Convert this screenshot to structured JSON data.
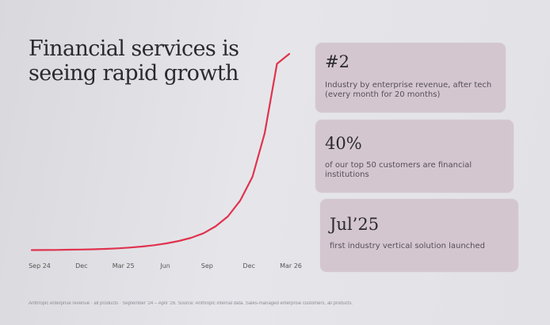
{
  "title": "Financial services is seeing rapid growth",
  "chart_data": {
    "type": "line",
    "x_ticks": [
      "Sep 24",
      "Dec",
      "Mar 25",
      "Jun",
      "Sep",
      "Dec",
      "Mar 26"
    ],
    "series": [
      {
        "values": [
          1,
          1.05,
          1.1,
          1.2,
          1.3,
          1.4,
          1.6,
          1.9,
          2.3,
          2.8,
          3.5,
          4.4,
          5.6,
          7.2,
          9.5,
          13,
          18,
          26,
          38,
          60,
          95,
          100
        ],
        "color": "#e0334f"
      }
    ],
    "ylim": [
      0,
      100
    ],
    "grid": false,
    "axis_labels_visible": false
  },
  "cards": [
    {
      "big": "#2",
      "small": "Industry by enterprise revenue, after tech (every month for 20 months)"
    },
    {
      "big": "40%",
      "small": "of our top 50 customers are financial institutions"
    },
    {
      "big": "Jul’25",
      "small": "first industry vertical solution launched"
    }
  ],
  "footnote": "Anthropic enterprise revenue · all products · September '24 – April '26. Source: Anthropic internal data. Sales-managed enterprise customers, all products."
}
